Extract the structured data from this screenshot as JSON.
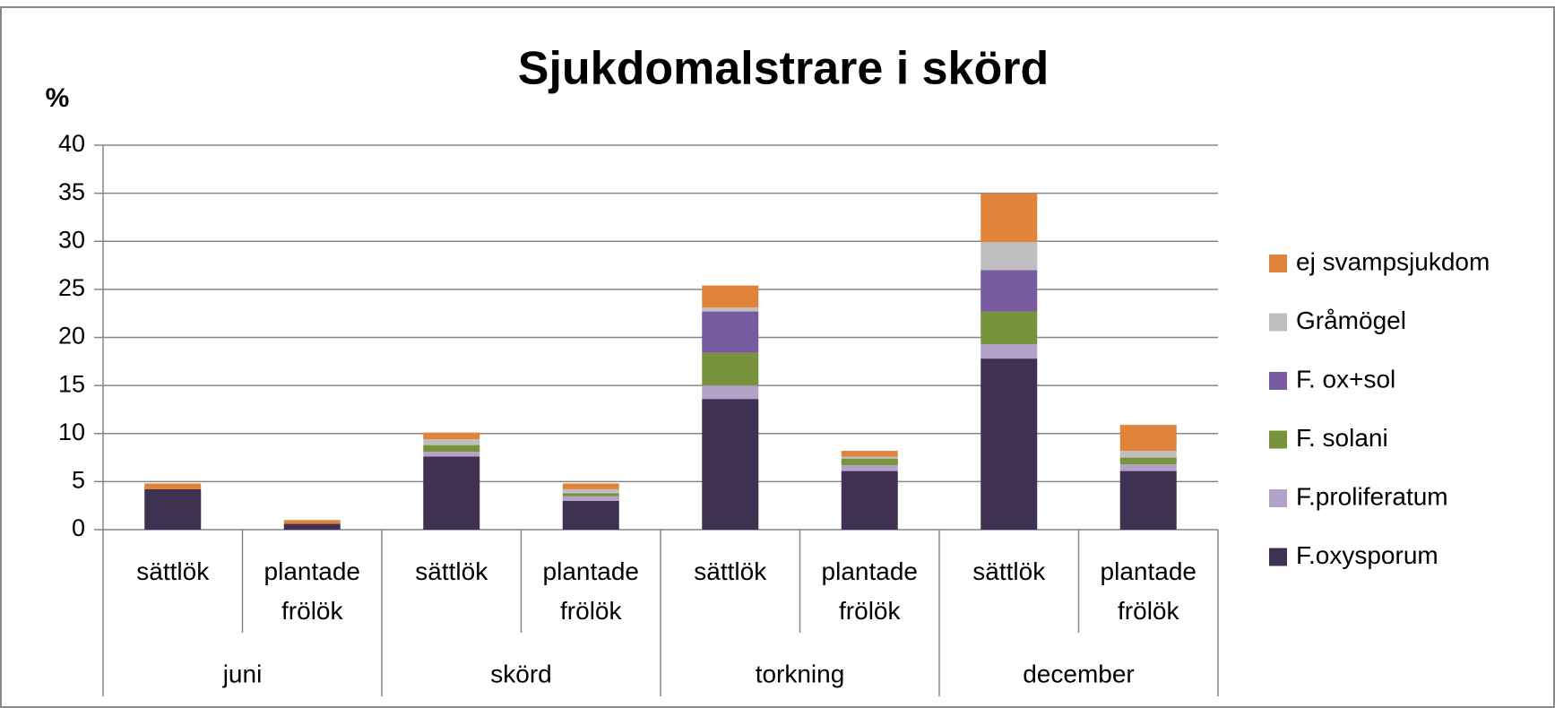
{
  "chart_data": {
    "type": "stacked_bar",
    "title": "Sjukdomalstrare i skörd",
    "y_label": "%",
    "categories": [
      "sättlök",
      "plantade frölök",
      "sättlök",
      "plantade frölök",
      "sättlök",
      "plantade frölök",
      "sättlök",
      "plantade frölök"
    ],
    "groups": [
      "juni",
      "skörd",
      "torkning",
      "december"
    ],
    "series": [
      {
        "name": "F.oxysporum",
        "color": "#3f3151",
        "values": [
          4.2,
          0.6,
          7.6,
          3.0,
          13.6,
          6.1,
          17.8,
          6.1
        ]
      },
      {
        "name": "F.proliferatum",
        "color": "#b3a2c7",
        "values": [
          0,
          0,
          0.5,
          0.5,
          1.4,
          0.6,
          1.5,
          0.7
        ]
      },
      {
        "name": "F. solani",
        "color": "#77933c",
        "values": [
          0,
          0,
          0.7,
          0.3,
          3.4,
          0.7,
          3.4,
          0.7
        ]
      },
      {
        "name": "F. ox+sol",
        "color": "#775aa0",
        "values": [
          0,
          0,
          0,
          0,
          4.3,
          0,
          4.3,
          0
        ]
      },
      {
        "name": "Gråmögel",
        "color": "#bfbfbf",
        "values": [
          0,
          0,
          0.6,
          0.4,
          0.4,
          0.2,
          2.9,
          0.7
        ]
      },
      {
        "name": "ej svampsjukdom",
        "color": "#e0843c",
        "values": [
          0.6,
          0.4,
          0.7,
          0.6,
          2.3,
          0.6,
          5.1,
          2.7
        ]
      }
    ],
    "ylim": [
      0,
      40
    ],
    "yticks": [
      0,
      5,
      10,
      15,
      20,
      25,
      30,
      35,
      40
    ],
    "grid": true,
    "legend": "right"
  }
}
